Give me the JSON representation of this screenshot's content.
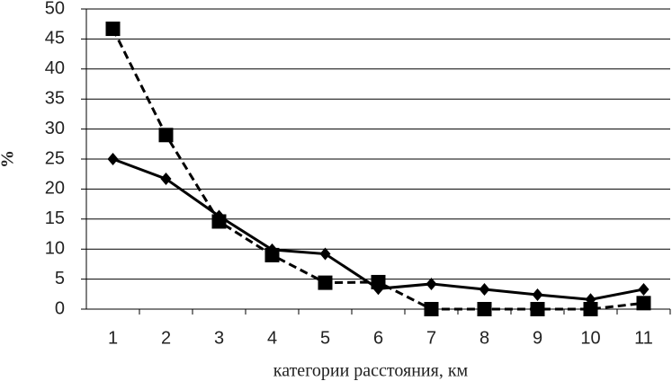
{
  "chart_data": {
    "type": "line",
    "x_label": "категории расстояния, км",
    "y_label": "%",
    "categories": [
      1,
      2,
      3,
      4,
      5,
      6,
      7,
      8,
      9,
      10,
      11
    ],
    "series": [
      {
        "color": "#000000",
        "dash": "solid",
        "marker": "diamond",
        "values": [
          25,
          21.7,
          15.5,
          9.9,
          9.2,
          3.4,
          4.2,
          3.3,
          2.4,
          1.6,
          3.3
        ]
      },
      {
        "color": "#000000",
        "dash": "dashed",
        "marker": "square",
        "values": [
          46.7,
          29,
          14.6,
          9,
          4.4,
          4.5,
          0,
          0,
          0,
          0,
          1
        ]
      }
    ],
    "ylim": [
      0,
      50
    ],
    "yticks": [
      0,
      5,
      10,
      15,
      20,
      25,
      30,
      35,
      40,
      45,
      50
    ],
    "grid": true
  }
}
